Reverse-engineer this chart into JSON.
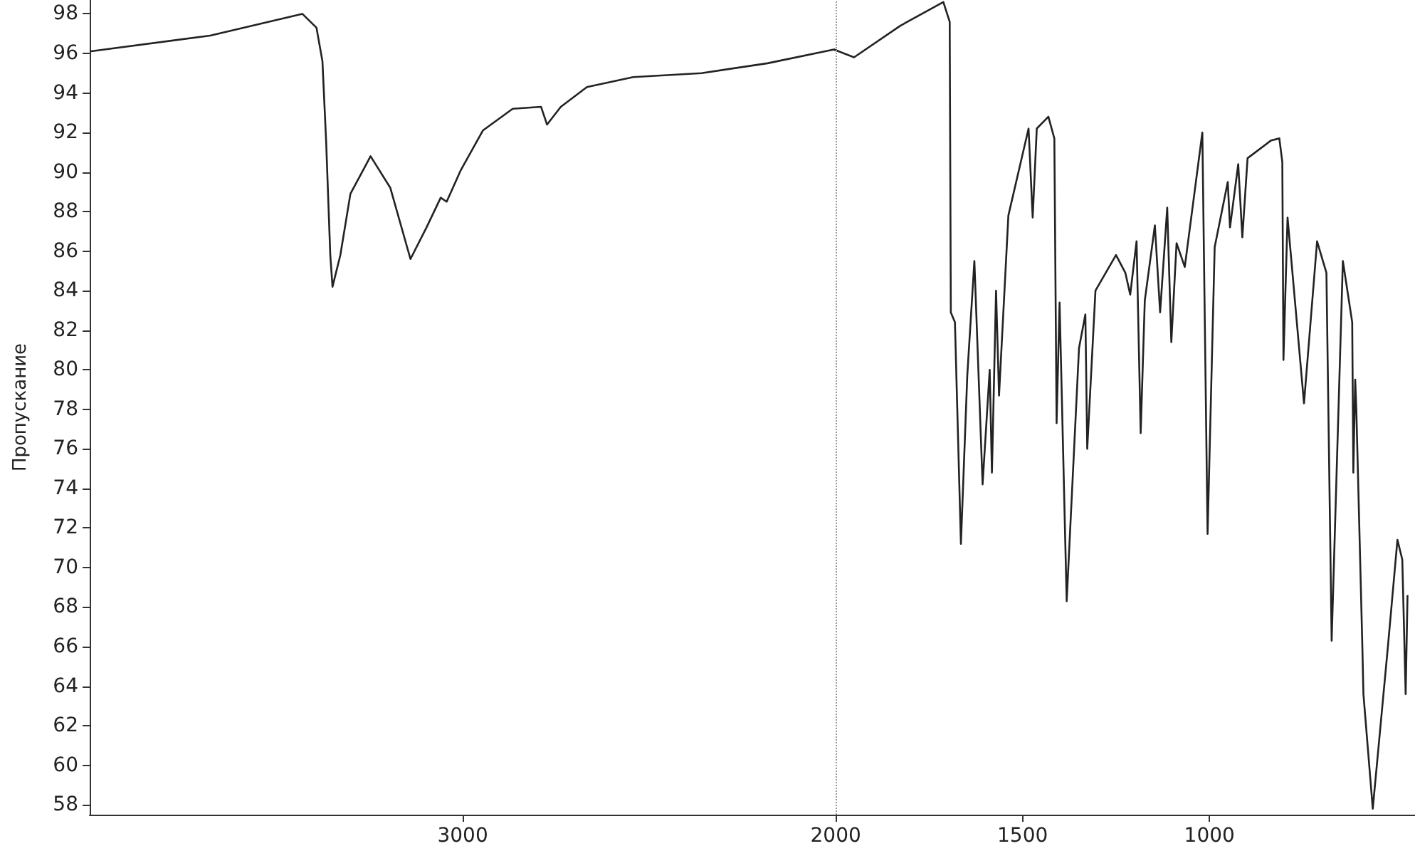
{
  "chart_data": {
    "type": "line",
    "ylabel": "Пропускание",
    "xlim": [
      4000,
      450
    ],
    "ylim": [
      57.5,
      98.7
    ],
    "xticks": [
      3000,
      2000,
      1500,
      1000
    ],
    "yticks": [
      58,
      60,
      62,
      64,
      66,
      68,
      70,
      72,
      74,
      76,
      78,
      80,
      82,
      84,
      86,
      88,
      90,
      92,
      94,
      96,
      98
    ],
    "grid": false,
    "marker": "none",
    "ref_lines": [
      {
        "axis": "x",
        "value": 2000,
        "label": null,
        "color": "#999999",
        "line_style": "dotted"
      }
    ],
    "series": [
      {
        "color": "#222222",
        "x": [
          4000,
          3677,
          3430,
          3392,
          3376,
          3366,
          3355,
          3349,
          3328,
          3301,
          3247,
          3194,
          3140,
          3097,
          3059,
          3043,
          3005,
          2946,
          2866,
          2790,
          2774,
          2737,
          2667,
          2543,
          2360,
          2183,
          2005,
          1951,
          1827,
          1712,
          1695,
          1692,
          1681,
          1665,
          1648,
          1629,
          1607,
          1588,
          1582,
          1571,
          1563,
          1538,
          1484,
          1473,
          1462,
          1431,
          1415,
          1409,
          1401,
          1382,
          1349,
          1332,
          1327,
          1305,
          1250,
          1225,
          1212,
          1195,
          1184,
          1173,
          1146,
          1132,
          1113,
          1102,
          1088,
          1066,
          1019,
          1005,
          986,
          951,
          945,
          923,
          912,
          898,
          835,
          813,
          805,
          802,
          791,
          747,
          712,
          687,
          673,
          643,
          618,
          615,
          610,
          607,
          591,
          588,
          563,
          522,
          497,
          484,
          475,
          470
        ],
        "values": [
          96.1,
          96.9,
          98.0,
          97.3,
          95.6,
          91.5,
          85.8,
          84.2,
          85.8,
          88.9,
          90.8,
          89.2,
          85.6,
          87.2,
          88.7,
          88.5,
          90.1,
          92.1,
          93.2,
          93.3,
          92.4,
          93.3,
          94.3,
          94.8,
          95.0,
          95.5,
          96.2,
          95.8,
          97.4,
          98.6,
          97.6,
          82.9,
          82.4,
          71.2,
          79.7,
          85.5,
          74.2,
          80.0,
          74.8,
          84.0,
          78.7,
          87.8,
          92.2,
          87.7,
          92.2,
          92.8,
          91.7,
          77.3,
          83.4,
          68.3,
          81.1,
          82.8,
          76.0,
          84.0,
          85.8,
          84.9,
          83.8,
          86.5,
          76.8,
          83.5,
          87.3,
          82.9,
          88.2,
          81.4,
          86.4,
          85.2,
          92.0,
          71.7,
          86.2,
          89.5,
          87.2,
          90.4,
          86.7,
          90.7,
          91.6,
          91.7,
          90.5,
          80.5,
          87.7,
          78.3,
          86.5,
          84.9,
          66.3,
          85.5,
          82.4,
          74.8,
          79.5,
          78.0,
          66.1,
          63.6,
          57.8,
          66.1,
          71.4,
          70.4,
          63.6,
          68.6
        ]
      }
    ]
  }
}
